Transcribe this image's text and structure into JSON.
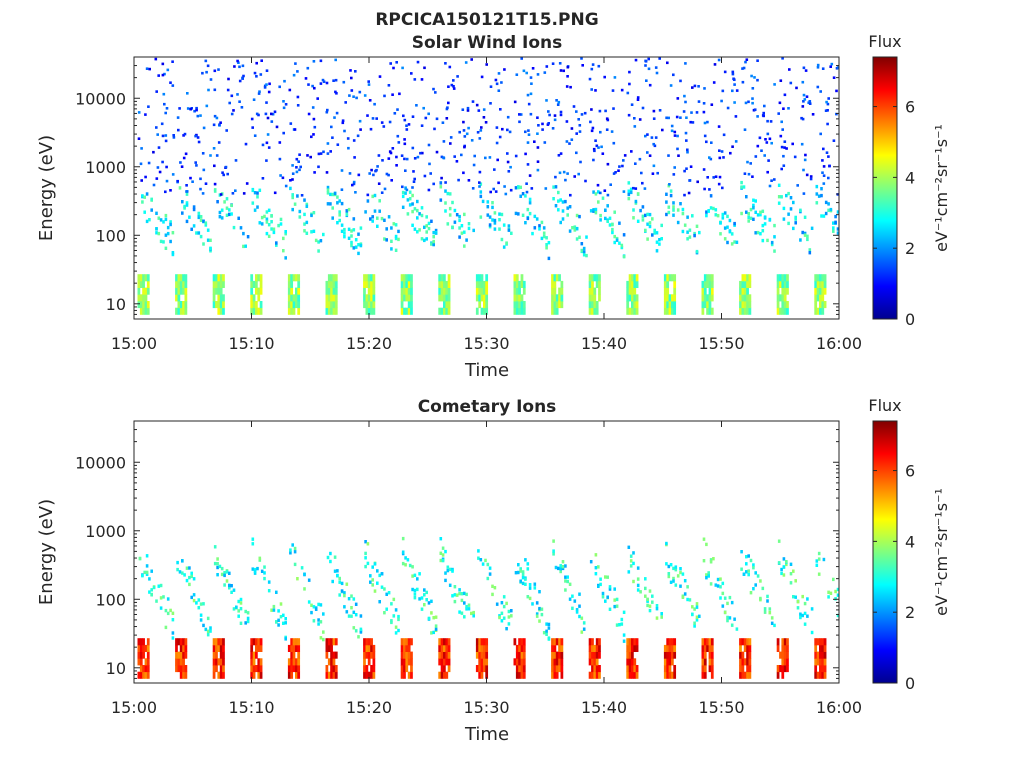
{
  "figure": {
    "title": "RPCICA150121T15.PNG"
  },
  "colorbar": {
    "label": "Flux",
    "unit": "eV⁻¹cm⁻²sr⁻¹s⁻¹",
    "ticks": [
      "0",
      "2",
      "4",
      "6"
    ],
    "range": [
      0,
      7.4
    ],
    "colormap": "jet"
  },
  "chart_data": [
    {
      "type": "heatmap",
      "title": "Solar Wind Ions",
      "xlabel": "Time",
      "ylabel": "Energy (eV)",
      "x_tick_labels": [
        "15:00",
        "15:10",
        "15:20",
        "15:30",
        "15:40",
        "15:50",
        "16:00"
      ],
      "x_range_minutes": [
        0,
        60
      ],
      "y_tick_labels": [
        "10",
        "100",
        "1000",
        "10000"
      ],
      "y_range_eV": [
        6,
        40000
      ],
      "y_scale": "log",
      "sweep_period_minutes": 3.2,
      "sweep_start_minutes": [
        0.3,
        3.5,
        6.7,
        9.9,
        13.1,
        16.3,
        19.5,
        22.7,
        25.9,
        29.1,
        32.3,
        35.5,
        38.7,
        41.9,
        45.1,
        48.3,
        51.5,
        54.7,
        57.9
      ],
      "bands": [
        {
          "name": "low-energy band",
          "energy_eV": [
            7,
            27
          ],
          "flux": 3.8
        },
        {
          "name": "ion peak",
          "energy_eV": [
            80,
            400
          ],
          "flux": 2.7
        },
        {
          "name": "background",
          "energy_eV": [
            400,
            40000
          ],
          "flux": 1.1
        }
      ]
    },
    {
      "type": "heatmap",
      "title": "Cometary Ions",
      "xlabel": "Time",
      "ylabel": "Energy (eV)",
      "x_tick_labels": [
        "15:00",
        "15:10",
        "15:20",
        "15:30",
        "15:40",
        "15:50",
        "16:00"
      ],
      "x_range_minutes": [
        0,
        60
      ],
      "y_tick_labels": [
        "10",
        "100",
        "1000",
        "10000"
      ],
      "y_range_eV": [
        6,
        40000
      ],
      "y_scale": "log",
      "sweep_period_minutes": 3.2,
      "sweep_start_minutes": [
        0.3,
        3.5,
        6.7,
        9.9,
        13.1,
        16.3,
        19.5,
        22.7,
        25.9,
        29.1,
        32.3,
        35.5,
        38.7,
        41.9,
        45.1,
        48.3,
        51.5,
        54.7,
        57.9
      ],
      "bands": [
        {
          "name": "low-energy band",
          "energy_eV": [
            7,
            27
          ],
          "flux": 6.2
        },
        {
          "name": "ion peak",
          "energy_eV": [
            40,
            500
          ],
          "flux": 3.0
        }
      ]
    }
  ]
}
